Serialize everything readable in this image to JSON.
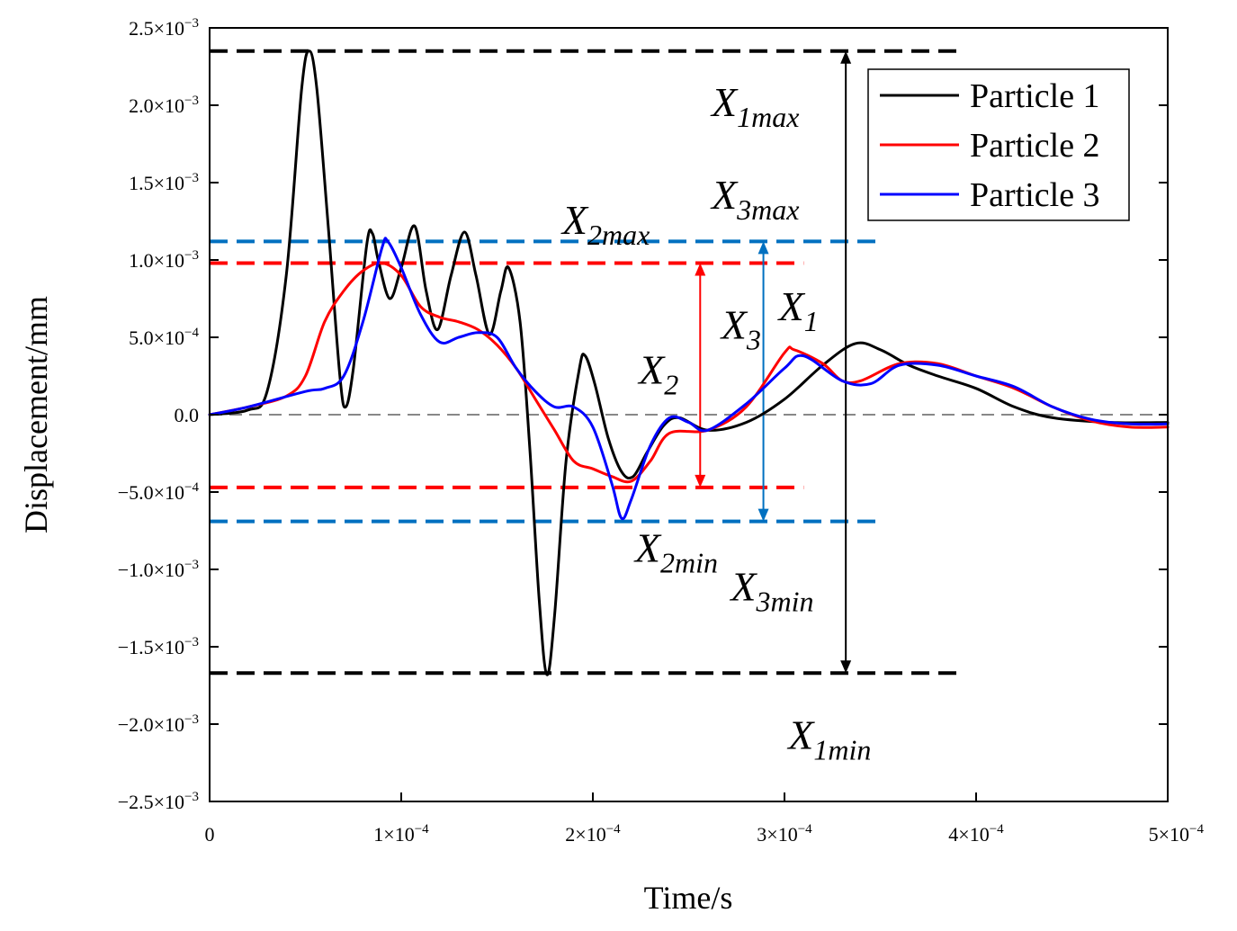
{
  "chart_data": {
    "type": "line",
    "xlabel": "Time/s",
    "ylabel": "Displacement/mm",
    "xlim": [
      0,
      0.0005
    ],
    "ylim": [
      -0.0025,
      0.0025
    ],
    "x_ticks": [
      0,
      0.0001,
      0.0002,
      0.0003,
      0.0004,
      0.0005
    ],
    "x_tick_labels": [
      {
        "base": "0",
        "exp": ""
      },
      {
        "base": "1×10",
        "exp": "−4"
      },
      {
        "base": "2×10",
        "exp": "−4"
      },
      {
        "base": "3×10",
        "exp": "−4"
      },
      {
        "base": "4×10",
        "exp": "−4"
      },
      {
        "base": "5×10",
        "exp": "−4"
      }
    ],
    "y_ticks": [
      0.0025,
      0.002,
      0.0015,
      0.001,
      0.0005,
      0,
      -0.0005,
      -0.001,
      -0.0015,
      -0.002,
      -0.0025
    ],
    "y_tick_labels": [
      {
        "base": "2.5×10",
        "exp": "−3"
      },
      {
        "base": "2.0×10",
        "exp": "−3"
      },
      {
        "base": "1.5×10",
        "exp": "−3"
      },
      {
        "base": "1.0×10",
        "exp": "−3"
      },
      {
        "base": "5.0×10",
        "exp": "−4"
      },
      {
        "base": "0.0",
        "exp": ""
      },
      {
        "base": "−5.0×10",
        "exp": "−4"
      },
      {
        "base": "−1.0×10",
        "exp": "−3"
      },
      {
        "base": "−1.5×10",
        "exp": "−3"
      },
      {
        "base": "−2.0×10",
        "exp": "−3"
      },
      {
        "base": "−2.5×10",
        "exp": "−3"
      }
    ],
    "legend_position": "top-right",
    "series": [
      {
        "name": "Particle 1",
        "color": "#000000",
        "points": [
          [
            0,
            0
          ],
          [
            2e-05,
            3e-05
          ],
          [
            3e-05,
            0.00015
          ],
          [
            4e-05,
            0.0009
          ],
          [
            4.8e-05,
            0.0021
          ],
          [
            5.2e-05,
            0.00235
          ],
          [
            5.6e-05,
            0.0021
          ],
          [
            6.2e-05,
            0.0012
          ],
          [
            6.8e-05,
            0.00025
          ],
          [
            7.1e-05,
            5e-05
          ],
          [
            7.5e-05,
            0.0003
          ],
          [
            8.2e-05,
            0.0011
          ],
          [
            8.5e-05,
            0.00117
          ],
          [
            8.8e-05,
            0.001
          ],
          [
            9.4e-05,
            0.00075
          ],
          [
            0.0001,
            0.00095
          ],
          [
            0.000107,
            0.00122
          ],
          [
            0.000113,
            0.0008
          ],
          [
            0.000119,
            0.00055
          ],
          [
            0.000126,
            0.0009
          ],
          [
            0.000133,
            0.00118
          ],
          [
            0.000139,
            0.0009
          ],
          [
            0.000146,
            0.00052
          ],
          [
            0.000152,
            0.0008
          ],
          [
            0.000156,
            0.00095
          ],
          [
            0.000162,
            0.0006
          ],
          [
            0.000167,
            -0.0002
          ],
          [
            0.000172,
            -0.0012
          ],
          [
            0.000176,
            -0.00168
          ],
          [
            0.00018,
            -0.0013
          ],
          [
            0.000186,
            -0.0003
          ],
          [
            0.000193,
            0.0003
          ],
          [
            0.000196,
            0.00038
          ],
          [
            0.000201,
            0.0002
          ],
          [
            0.000208,
            -0.00015
          ],
          [
            0.000215,
            -0.00037
          ],
          [
            0.000221,
            -0.0004
          ],
          [
            0.000228,
            -0.00025
          ],
          [
            0.000237,
            -7e-05
          ],
          [
            0.000245,
            -2e-05
          ],
          [
            0.00026,
            -0.0001
          ],
          [
            0.00028,
            -5e-05
          ],
          [
            0.0003,
            0.0001
          ],
          [
            0.00032,
            0.00032
          ],
          [
            0.000337,
            0.00046
          ],
          [
            0.00035,
            0.00042
          ],
          [
            0.000365,
            0.00032
          ],
          [
            0.00038,
            0.00025
          ],
          [
            0.0004,
            0.00017
          ],
          [
            0.00042,
            5e-05
          ],
          [
            0.00044,
            -2e-05
          ],
          [
            0.00047,
            -5e-05
          ],
          [
            0.0005,
            -5e-05
          ]
        ]
      },
      {
        "name": "Particle 2",
        "color": "#ff0000",
        "points": [
          [
            0,
            0
          ],
          [
            2e-05,
            5e-05
          ],
          [
            4e-05,
            0.00012
          ],
          [
            5e-05,
            0.00025
          ],
          [
            6e-05,
            0.0006
          ],
          [
            7e-05,
            0.0008
          ],
          [
            8e-05,
            0.00093
          ],
          [
            9e-05,
            0.00098
          ],
          [
            0.0001,
            0.0009
          ],
          [
            0.00011,
            0.0007
          ],
          [
            0.00012,
            0.00063
          ],
          [
            0.00013,
            0.0006
          ],
          [
            0.00014,
            0.00055
          ],
          [
            0.00015,
            0.00045
          ],
          [
            0.00016,
            0.0003
          ],
          [
            0.00017,
            0.0001
          ],
          [
            0.00018,
            -0.0001
          ],
          [
            0.00019,
            -0.0003
          ],
          [
            0.0002,
            -0.00035
          ],
          [
            0.00021,
            -0.0004
          ],
          [
            0.00022,
            -0.00043
          ],
          [
            0.00023,
            -0.0003
          ],
          [
            0.00024,
            -0.00012
          ],
          [
            0.00026,
            -0.0001
          ],
          [
            0.00028,
            5e-05
          ],
          [
            0.0003,
            0.0004
          ],
          [
            0.000305,
            0.00042
          ],
          [
            0.00032,
            0.00033
          ],
          [
            0.00033,
            0.00022
          ],
          [
            0.00034,
            0.00022
          ],
          [
            0.00036,
            0.00033
          ],
          [
            0.00038,
            0.00033
          ],
          [
            0.0004,
            0.00025
          ],
          [
            0.00042,
            0.00017
          ],
          [
            0.00044,
            5e-05
          ],
          [
            0.00046,
            -4e-05
          ],
          [
            0.00048,
            -8e-05
          ],
          [
            0.0005,
            -8e-05
          ]
        ]
      },
      {
        "name": "Particle 3",
        "color": "#0000ff",
        "points": [
          [
            0,
            0
          ],
          [
            2e-05,
            5e-05
          ],
          [
            5e-05,
            0.00015
          ],
          [
            6e-05,
            0.00017
          ],
          [
            7e-05,
            0.00025
          ],
          [
            8e-05,
            0.0006
          ],
          [
            9e-05,
            0.00108
          ],
          [
            9.3e-05,
            0.00112
          ],
          [
            0.0001,
            0.00095
          ],
          [
            0.00011,
            0.00065
          ],
          [
            0.00012,
            0.00047
          ],
          [
            0.00013,
            0.0005
          ],
          [
            0.00014,
            0.00053
          ],
          [
            0.00015,
            0.0005
          ],
          [
            0.00016,
            0.0003
          ],
          [
            0.00017,
            0.00015
          ],
          [
            0.00018,
            5e-05
          ],
          [
            0.00019,
            5e-05
          ],
          [
            0.0002,
            -8e-05
          ],
          [
            0.00021,
            -0.00045
          ],
          [
            0.000215,
            -0.00067
          ],
          [
            0.00022,
            -0.00055
          ],
          [
            0.00023,
            -0.0002
          ],
          [
            0.00024,
            -2e-05
          ],
          [
            0.00025,
            -5e-05
          ],
          [
            0.00026,
            -0.0001
          ],
          [
            0.00028,
            7e-05
          ],
          [
            0.0003,
            0.0003
          ],
          [
            0.00031,
            0.00038
          ],
          [
            0.00033,
            0.00022
          ],
          [
            0.000345,
            0.0002
          ],
          [
            0.00036,
            0.00032
          ],
          [
            0.00038,
            0.00032
          ],
          [
            0.0004,
            0.00025
          ],
          [
            0.00042,
            0.00018
          ],
          [
            0.00044,
            5e-05
          ],
          [
            0.00046,
            -3e-05
          ],
          [
            0.00048,
            -6e-05
          ],
          [
            0.0005,
            -6e-05
          ]
        ]
      }
    ],
    "reference_lines": [
      {
        "name": "zero",
        "y": 0,
        "x_range": [
          0,
          0.0005
        ],
        "color": "#888888"
      },
      {
        "name": "x1max",
        "y": 0.00235,
        "x_range": [
          0,
          0.00039
        ],
        "color": "#000000"
      },
      {
        "name": "x1min",
        "y": -0.00167,
        "x_range": [
          0,
          0.00039
        ],
        "color": "#000000"
      },
      {
        "name": "x2max",
        "y": 0.00098,
        "x_range": [
          0,
          0.00031
        ],
        "color": "#ff0000"
      },
      {
        "name": "x2min",
        "y": -0.00047,
        "x_range": [
          0,
          0.00031
        ],
        "color": "#ff0000"
      },
      {
        "name": "x3max",
        "y": 0.00112,
        "x_range": [
          0,
          0.00035
        ],
        "color": "#0070c0"
      },
      {
        "name": "x3min",
        "y": -0.00069,
        "x_range": [
          0,
          0.00035
        ],
        "color": "#0070c0"
      }
    ],
    "range_arrows": [
      {
        "name": "x1",
        "x": 0.000332,
        "y_from": -0.00167,
        "y_to": 0.00235,
        "color": "#000000"
      },
      {
        "name": "x2",
        "x": 0.000256,
        "y_from": -0.00047,
        "y_to": 0.00098,
        "color": "#ff0000"
      },
      {
        "name": "x3",
        "x": 0.000289,
        "y_from": -0.00069,
        "y_to": 0.00112,
        "color": "#0070c0"
      }
    ],
    "annotations": [
      {
        "name": "x1max",
        "main": "X",
        "sub": "1max",
        "x": 0.000262,
        "y": 0.00193
      },
      {
        "name": "x3max",
        "main": "X",
        "sub": "3max",
        "x": 0.000262,
        "y": 0.00133
      },
      {
        "name": "x2max",
        "main": "X",
        "sub": "2max",
        "x": 0.000184,
        "y": 0.00117
      },
      {
        "name": "x1",
        "main": "X",
        "sub": "1",
        "x": 0.000297,
        "y": 0.00061
      },
      {
        "name": "x3",
        "main": "X",
        "sub": "3",
        "x": 0.000267,
        "y": 0.00049
      },
      {
        "name": "x2",
        "main": "X",
        "sub": "2",
        "x": 0.000224,
        "y": 0.0002
      },
      {
        "name": "x2min",
        "main": "X",
        "sub": "2min",
        "x": 0.000222,
        "y": -0.00095
      },
      {
        "name": "x3min",
        "main": "X",
        "sub": "3min",
        "x": 0.000272,
        "y": -0.0012
      },
      {
        "name": "x1min",
        "main": "X",
        "sub": "1min",
        "x": 0.000302,
        "y": -0.00216
      }
    ]
  }
}
